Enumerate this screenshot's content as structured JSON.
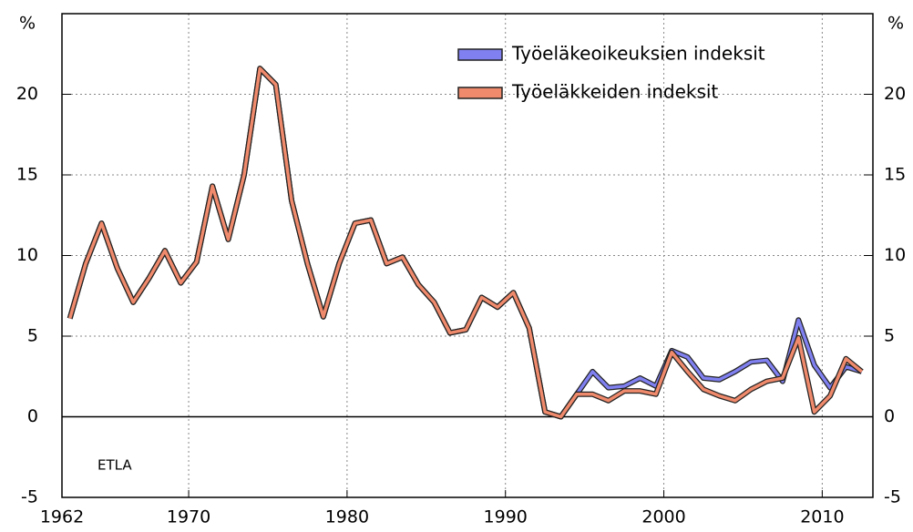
{
  "chart_data": {
    "type": "line",
    "ylabel": "%",
    "y2label": "%",
    "annotation": "ETLA",
    "x": [
      1962.5,
      1963.5,
      1964.5,
      1965.5,
      1966.5,
      1967.5,
      1968.5,
      1969.5,
      1970.5,
      1971.5,
      1972.5,
      1973.5,
      1974.5,
      1975.5,
      1976.5,
      1977.5,
      1978.5,
      1979.5,
      1980.5,
      1981.5,
      1982.5,
      1983.5,
      1984.5,
      1985.5,
      1986.5,
      1987.5,
      1988.5,
      1989.5,
      1990.5,
      1991.5,
      1992.5,
      1993.5,
      1994.5,
      1995.5,
      1996.5,
      1997.5,
      1998.5,
      1999.5,
      2000.5,
      2001.5,
      2002.5,
      2003.5,
      2004.5,
      2005.5,
      2006.5,
      2007.5,
      2008.5,
      2009.5,
      2010.5,
      2011.5,
      2012.5
    ],
    "series": [
      {
        "name": "Työeläkeoikeuksien indeksit",
        "color": "#8080f0",
        "values": [
          6.1,
          9.5,
          12.0,
          9.2,
          7.1,
          8.6,
          10.3,
          8.3,
          9.6,
          14.3,
          11.0,
          15.0,
          21.6,
          20.6,
          13.4,
          9.5,
          6.2,
          9.5,
          12.0,
          12.2,
          9.5,
          9.9,
          8.2,
          7.1,
          5.2,
          5.4,
          7.4,
          6.8,
          7.7,
          5.5,
          0.3,
          0.0,
          1.4,
          2.8,
          1.8,
          1.9,
          2.4,
          1.9,
          4.1,
          3.7,
          2.4,
          2.3,
          2.8,
          3.4,
          3.5,
          2.2,
          6.0,
          3.2,
          1.8,
          3.1,
          2.8
        ]
      },
      {
        "name": "Työeläkkeiden indeksit",
        "color": "#f08a6c",
        "values": [
          6.1,
          9.5,
          12.0,
          9.2,
          7.1,
          8.6,
          10.3,
          8.3,
          9.6,
          14.3,
          11.0,
          15.0,
          21.6,
          20.6,
          13.4,
          9.5,
          6.2,
          9.5,
          12.0,
          12.2,
          9.5,
          9.9,
          8.2,
          7.1,
          5.2,
          5.4,
          7.4,
          6.8,
          7.7,
          5.5,
          0.3,
          0.0,
          1.4,
          1.4,
          1.0,
          1.6,
          1.6,
          1.4,
          4.0,
          2.8,
          1.7,
          1.3,
          1.0,
          1.7,
          2.2,
          2.4,
          4.9,
          0.3,
          1.3,
          3.6,
          2.8
        ]
      }
    ],
    "xlim": [
      1962,
      2013.2
    ],
    "xticks": [
      1962,
      1970,
      1980,
      1990,
      2000,
      2010
    ],
    "ylim": [
      -5,
      25
    ],
    "yticks": [
      -5,
      0,
      5,
      10,
      15,
      20
    ],
    "y2lim": [
      -5,
      25
    ],
    "y2ticks": [
      -5,
      0,
      5,
      10,
      15,
      20
    ],
    "grid": true,
    "legend": "upper right"
  }
}
